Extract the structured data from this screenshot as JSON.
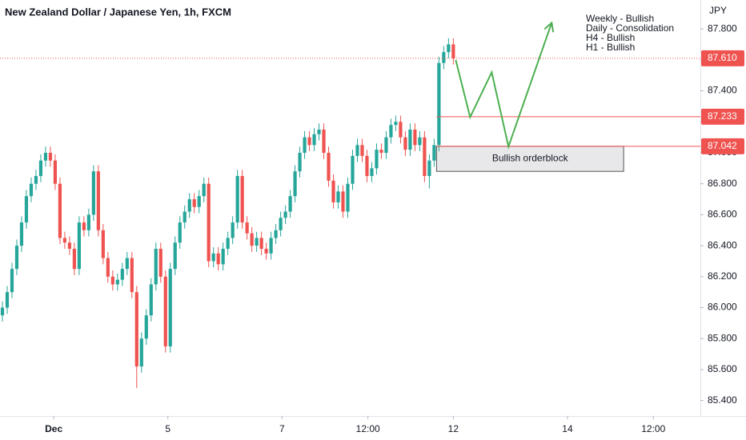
{
  "chart_data": {
    "type": "candlestick",
    "title": "New Zealand Dollar / Japanese Yen, 1h, FXCM",
    "currency": "JPY",
    "up_color": "#26a69a",
    "down_color": "#ef5350",
    "open": [
      85.95,
      86.0,
      86.1,
      86.25,
      86.4,
      86.55,
      86.72,
      86.8,
      86.85,
      86.95,
      87.0,
      86.95,
      86.8,
      86.45,
      86.42,
      86.38,
      86.25,
      86.55,
      86.5,
      86.6,
      86.88,
      86.5,
      86.32,
      86.2,
      86.15,
      86.18,
      86.25,
      86.32,
      86.1,
      85.62,
      85.8,
      85.95,
      86.15,
      86.38,
      86.2,
      85.75,
      86.25,
      86.42,
      86.55,
      86.62,
      86.7,
      86.65,
      86.72,
      86.8,
      86.3,
      86.35,
      86.28,
      86.38,
      86.45,
      86.55,
      86.85,
      86.55,
      86.48,
      86.4,
      86.45,
      86.38,
      86.35,
      86.45,
      86.5,
      86.58,
      86.62,
      86.72,
      86.88,
      87.0,
      87.1,
      87.05,
      87.12,
      87.15,
      87.0,
      86.82,
      86.68,
      86.75,
      86.62,
      86.8,
      86.98,
      87.05,
      86.98,
      86.85,
      86.9,
      87.02,
      87.0,
      87.1,
      87.18,
      87.2,
      87.1,
      87.02,
      87.15,
      87.05,
      87.1,
      86.85,
      86.95,
      87.05,
      87.58,
      87.65,
      87.7
    ],
    "high": [
      86.04,
      86.14,
      86.29,
      86.44,
      86.59,
      86.76,
      86.84,
      86.89,
      86.99,
      87.04,
      87.04,
      86.99,
      86.84,
      86.49,
      86.46,
      86.42,
      86.59,
      86.59,
      86.64,
      86.92,
      86.92,
      86.54,
      86.36,
      86.24,
      86.22,
      86.29,
      86.36,
      86.36,
      86.14,
      85.84,
      85.99,
      86.19,
      86.42,
      86.42,
      86.24,
      86.29,
      86.46,
      86.59,
      86.66,
      86.74,
      86.74,
      86.76,
      86.84,
      86.84,
      86.39,
      86.39,
      86.42,
      86.49,
      86.59,
      86.89,
      86.89,
      86.59,
      86.52,
      86.49,
      86.49,
      86.42,
      86.49,
      86.54,
      86.62,
      86.66,
      86.76,
      86.92,
      87.04,
      87.14,
      87.14,
      87.16,
      87.19,
      87.19,
      87.04,
      86.86,
      86.79,
      86.79,
      86.84,
      87.02,
      87.09,
      87.09,
      87.02,
      86.94,
      87.06,
      87.06,
      87.14,
      87.22,
      87.24,
      87.24,
      87.14,
      87.19,
      87.19,
      87.14,
      87.14,
      86.99,
      87.09,
      87.62,
      87.69,
      87.74,
      87.74
    ],
    "low": [
      85.91,
      85.96,
      86.06,
      86.21,
      86.36,
      86.51,
      86.68,
      86.76,
      86.81,
      86.91,
      86.91,
      86.76,
      86.41,
      86.38,
      86.34,
      86.21,
      86.21,
      86.46,
      86.46,
      86.56,
      86.46,
      86.28,
      86.16,
      86.11,
      86.11,
      86.14,
      86.21,
      86.06,
      85.48,
      85.58,
      85.76,
      85.91,
      86.11,
      86.16,
      85.71,
      85.71,
      86.21,
      86.38,
      86.51,
      86.58,
      86.61,
      86.61,
      86.68,
      86.26,
      86.26,
      86.24,
      86.24,
      86.34,
      86.41,
      86.51,
      86.51,
      86.44,
      86.36,
      86.36,
      86.34,
      86.31,
      86.31,
      86.41,
      86.46,
      86.54,
      86.58,
      86.68,
      86.84,
      86.96,
      87.01,
      87.01,
      87.08,
      86.96,
      86.78,
      86.64,
      86.64,
      86.58,
      86.58,
      86.76,
      86.94,
      86.94,
      86.81,
      86.81,
      86.86,
      86.96,
      86.96,
      87.06,
      87.14,
      87.06,
      86.98,
      86.98,
      87.01,
      87.01,
      86.81,
      86.77,
      86.91,
      87.01,
      87.54,
      87.61,
      87.57
    ],
    "close": [
      86.0,
      86.1,
      86.25,
      86.4,
      86.55,
      86.72,
      86.8,
      86.85,
      86.95,
      87.0,
      86.95,
      86.8,
      86.45,
      86.42,
      86.38,
      86.25,
      86.55,
      86.5,
      86.6,
      86.88,
      86.5,
      86.32,
      86.2,
      86.15,
      86.18,
      86.25,
      86.32,
      86.1,
      85.62,
      85.8,
      85.95,
      86.15,
      86.38,
      86.2,
      85.75,
      86.25,
      86.42,
      86.55,
      86.62,
      86.7,
      86.65,
      86.72,
      86.8,
      86.3,
      86.35,
      86.28,
      86.38,
      86.45,
      86.55,
      86.85,
      86.55,
      86.48,
      86.4,
      86.45,
      86.38,
      86.35,
      86.45,
      86.5,
      86.58,
      86.62,
      86.72,
      86.88,
      87.0,
      87.1,
      87.05,
      87.12,
      87.15,
      87.0,
      86.82,
      86.68,
      86.75,
      86.62,
      86.8,
      86.98,
      87.05,
      86.98,
      86.85,
      86.9,
      87.02,
      87.0,
      87.1,
      87.18,
      87.2,
      87.1,
      87.02,
      87.15,
      87.05,
      87.1,
      86.85,
      86.95,
      87.05,
      87.58,
      87.65,
      87.7,
      87.61
    ],
    "xlim": [
      -0.5,
      145.5
    ],
    "xticks": [
      {
        "value": 10.7,
        "label": "Dec"
      },
      {
        "value": 34.5,
        "label": "5"
      },
      {
        "value": 58.3,
        "label": "7"
      },
      {
        "value": 76.2,
        "label": "12:00"
      },
      {
        "value": 94,
        "label": "12"
      },
      {
        "value": 117.8,
        "label": "14"
      },
      {
        "value": 135.7,
        "label": "12:00"
      }
    ],
    "ylim": [
      85.3,
      87.85
    ],
    "yticks": [
      {
        "value": 85.4,
        "label": "85.400"
      },
      {
        "value": 85.6,
        "label": "85.600"
      },
      {
        "value": 85.8,
        "label": "85.800"
      },
      {
        "value": 86.0,
        "label": "86.000"
      },
      {
        "value": 86.2,
        "label": "86.200"
      },
      {
        "value": 86.4,
        "label": "86.400"
      },
      {
        "value": 86.6,
        "label": "86.600"
      },
      {
        "value": 86.8,
        "label": "86.800"
      },
      {
        "value": 87.0,
        "label": "87.000"
      },
      {
        "value": 87.2,
        "label": "87.200"
      },
      {
        "value": 87.4,
        "label": "87.400"
      },
      {
        "value": 87.6,
        "label": "87.600"
      },
      {
        "value": 87.8,
        "label": "87.800"
      }
    ],
    "levels": [
      {
        "value": 87.61,
        "label": "87.610",
        "style": "dotted",
        "color": "#ef5350"
      },
      {
        "value": 87.233,
        "label": "87.233",
        "style": "solid",
        "color": "#ef5350"
      },
      {
        "value": 87.042,
        "label": "87.042",
        "style": "solid",
        "color": "#ef5350"
      }
    ],
    "orderblock": {
      "label": "Bullish orderblock",
      "top": 87.042,
      "bottom": 86.88,
      "start": 90.5,
      "end": 129.5
    },
    "projection": {
      "color": "#4caf50",
      "x": [
        94.5,
        97.5,
        102,
        105.5,
        114.5
      ],
      "values": [
        87.6,
        87.23,
        87.52,
        87.04,
        87.84
      ]
    },
    "notes": [
      "Weekly - Bullish",
      "Daily - Consolidation",
      "H4 - Bullish",
      "H1 - Bullish"
    ]
  }
}
